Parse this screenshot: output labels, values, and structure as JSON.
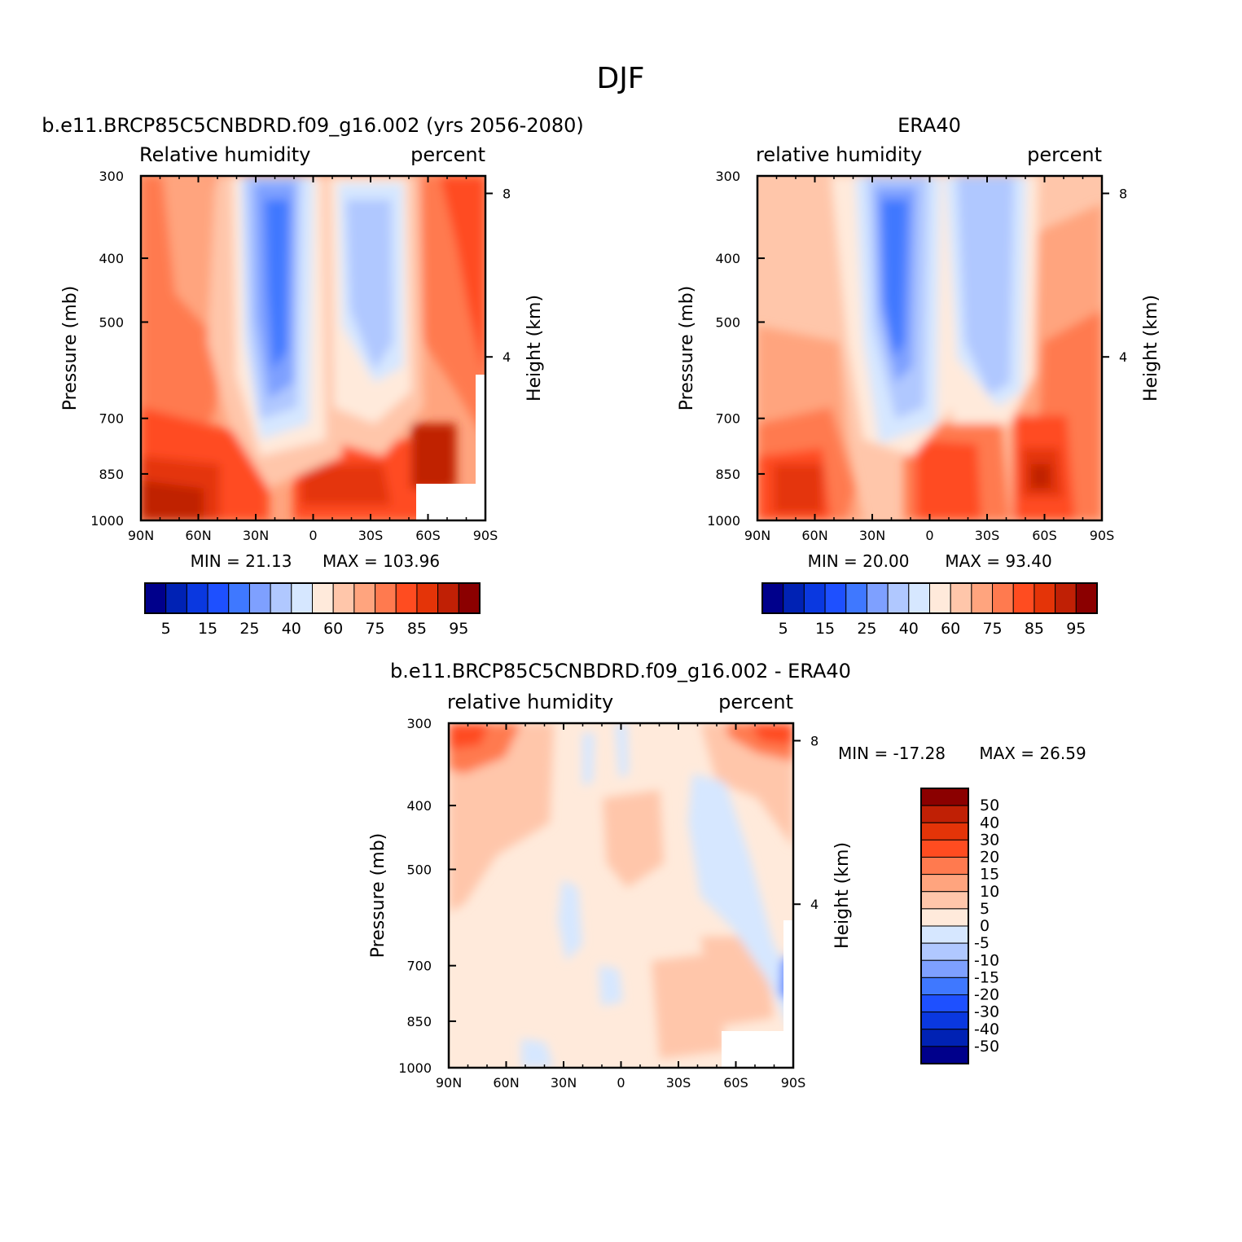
{
  "figure": {
    "title": "DJF"
  },
  "chart_data": [
    {
      "type": "heatmap",
      "panel": "model",
      "title": "b.e11.BRCP85C5CNBDRD.f09_g16.002 (yrs 2056-2080)",
      "left_label": "Relative humidity",
      "right_label": "percent",
      "ylabel": "Pressure (mb)",
      "ylabel_right": "Height (km)",
      "x_ticks": [
        "90N",
        "60N",
        "30N",
        "0",
        "30S",
        "60S",
        "90S"
      ],
      "y_ticks": [
        "300",
        "400",
        "500",
        "700",
        "850",
        "1000"
      ],
      "y_ticks_right": [
        "8",
        "4"
      ],
      "min_text": "MIN =   21.13",
      "max_text": "MAX = 103.96",
      "colorbar": {
        "orientation": "horizontal",
        "labels": [
          "5",
          "15",
          "25",
          "40",
          "60",
          "75",
          "85",
          "95"
        ]
      }
    },
    {
      "type": "heatmap",
      "panel": "obs",
      "title": "ERA40",
      "left_label": "relative humidity",
      "right_label": "percent",
      "ylabel": "Pressure (mb)",
      "ylabel_right": "Height (km)",
      "x_ticks": [
        "90N",
        "60N",
        "30N",
        "0",
        "30S",
        "60S",
        "90S"
      ],
      "y_ticks": [
        "300",
        "400",
        "500",
        "700",
        "850",
        "1000"
      ],
      "y_ticks_right": [
        "8",
        "4"
      ],
      "min_text": "MIN =   20.00",
      "max_text": "MAX =   93.40",
      "colorbar": {
        "orientation": "horizontal",
        "labels": [
          "5",
          "15",
          "25",
          "40",
          "60",
          "75",
          "85",
          "95"
        ]
      }
    },
    {
      "type": "heatmap",
      "panel": "difference",
      "title": "b.e11.BRCP85C5CNBDRD.f09_g16.002 - ERA40",
      "left_label": "relative humidity",
      "right_label": "percent",
      "ylabel": "Pressure (mb)",
      "ylabel_right": "Height (km)",
      "x_ticks": [
        "90N",
        "60N",
        "30N",
        "0",
        "30S",
        "60S",
        "90S"
      ],
      "y_ticks": [
        "300",
        "400",
        "500",
        "700",
        "850",
        "1000"
      ],
      "y_ticks_right": [
        "8",
        "4"
      ],
      "min_text": "MIN = -17.28",
      "max_text": "MAX =   26.59",
      "colorbar": {
        "orientation": "vertical",
        "labels": [
          "50",
          "40",
          "30",
          "20",
          "15",
          "10",
          "5",
          "0",
          "-5",
          "-10",
          "-15",
          "-20",
          "-30",
          "-40",
          "-50"
        ]
      }
    }
  ],
  "palette": [
    "#00008b",
    "#0022b4",
    "#0a38e0",
    "#1e50ff",
    "#3f78ff",
    "#7ea0ff",
    "#b0c8ff",
    "#d6e7ff",
    "#ffeadb",
    "#ffc6aa",
    "#ffa47e",
    "#ff7a4f",
    "#ff4c20",
    "#e43408",
    "#c02005",
    "#8b0000"
  ]
}
